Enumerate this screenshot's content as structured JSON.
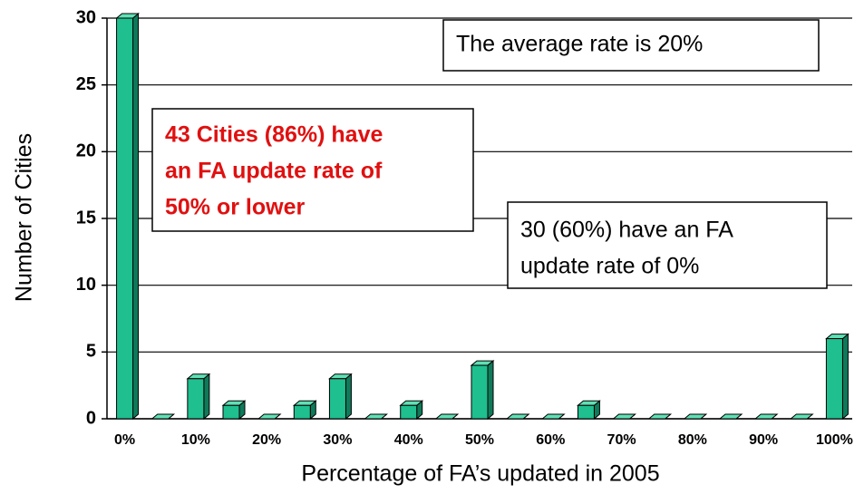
{
  "chart_data": {
    "type": "bar",
    "x_label": "Percentage of FA’s updated in 2005",
    "y_label": "Number of Cities",
    "categories": [
      "0%",
      null,
      "10%",
      null,
      "20%",
      null,
      "30%",
      null,
      "40%",
      null,
      "50%",
      null,
      "60%",
      null,
      "70%",
      null,
      "80%",
      null,
      "90%",
      null,
      "100%"
    ],
    "values": [
      30,
      0,
      3,
      1,
      0,
      1,
      3,
      0,
      1,
      0,
      4,
      0,
      0,
      1,
      0,
      0,
      0,
      0,
      0,
      0,
      6
    ],
    "color": "#1fbf8f",
    "ylim": [
      0,
      30
    ],
    "yticks": [
      0,
      5,
      10,
      15,
      20,
      25,
      30
    ],
    "grid": true,
    "annotations": [
      {
        "lines": [
          "The average rate is 20%"
        ],
        "color": "#000000"
      },
      {
        "lines": [
          "43 Cities (86%) have",
          "an FA update rate of",
          "50% or lower"
        ],
        "color": "#e01010"
      },
      {
        "lines": [
          "30 (60%) have an FA",
          "update rate of 0%"
        ],
        "color": "#000000"
      }
    ]
  }
}
